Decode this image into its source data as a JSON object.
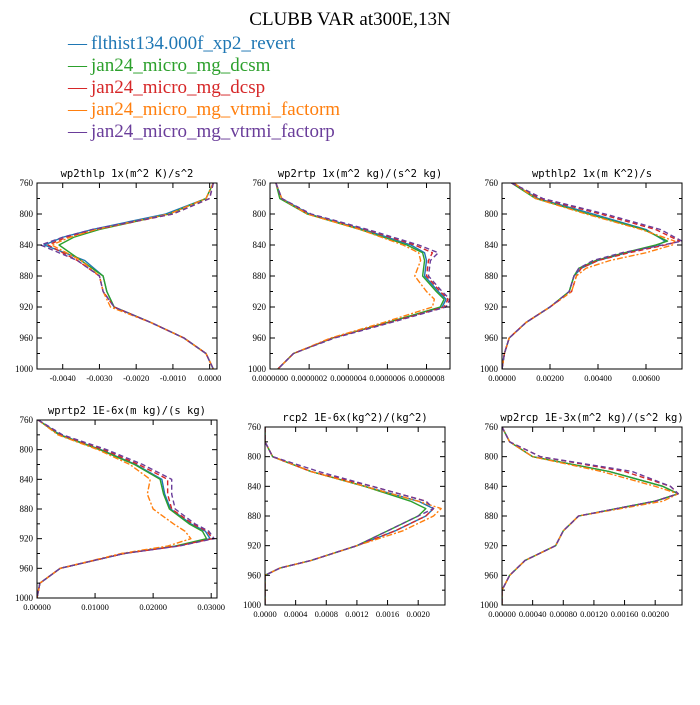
{
  "title": "CLUBB VAR at300E,13N",
  "legend": [
    {
      "name": "flthist134.000f_xp2_revert",
      "color": "#1f77b4",
      "dash": "solid"
    },
    {
      "name": "jan24_micro_mg_dcsm",
      "color": "#2ca02c",
      "dash": "solid"
    },
    {
      "name": "jan24_micro_mg_dcsp",
      "color": "#d62728",
      "dash": "dashed"
    },
    {
      "name": "jan24_micro_mg_vtrmi_factorm",
      "color": "#ff7f0e",
      "dash": "dashdot"
    },
    {
      "name": "jan24_micro_mg_vtrmi_factorp",
      "color": "#6a3d9a",
      "dash": "dashed"
    }
  ],
  "legend_marker": "—",
  "chart_data": [
    {
      "type": "line",
      "title": "wp2thlp  1x(m^2 K)/s^2",
      "xlim": [
        -0.0047,
        0.0002
      ],
      "ylim": [
        760,
        1000
      ],
      "xticks": [
        -0.004,
        -0.003,
        -0.002,
        -0.001,
        0.0
      ],
      "xtick_labels": [
        "-0.0040",
        "-0.0030",
        "-0.0020",
        "-0.0010",
        "0.0000"
      ],
      "yticks": [
        760,
        800,
        840,
        880,
        920,
        960,
        1000
      ],
      "y": [
        760,
        780,
        800,
        820,
        830,
        840,
        860,
        880,
        900,
        920,
        940,
        960,
        980,
        1000
      ],
      "series": [
        {
          "values": [
            0.0001,
            -0.0001,
            -0.0012,
            -0.0032,
            -0.004,
            -0.0045,
            -0.0034,
            -0.0029,
            -0.0028,
            -0.0026,
            -0.0016,
            -0.0007,
            -0.0001,
            0.0001
          ]
        },
        {
          "values": [
            0.0001,
            -0.0001,
            -0.0011,
            -0.003,
            -0.0037,
            -0.0041,
            -0.0035,
            -0.0029,
            -0.0028,
            -0.0026,
            -0.0016,
            -0.0007,
            -0.0001,
            0.0001
          ]
        },
        {
          "values": [
            0.0001,
            0.0,
            -0.001,
            -0.0031,
            -0.0039,
            -0.0044,
            -0.0036,
            -0.003,
            -0.0029,
            -0.0026,
            -0.0016,
            -0.0007,
            -0.0001,
            0.0001
          ]
        },
        {
          "values": [
            0.0001,
            -0.0001,
            -0.0011,
            -0.0031,
            -0.0038,
            -0.0043,
            -0.0035,
            -0.003,
            -0.0029,
            -0.0027,
            -0.0016,
            -0.0007,
            -0.0001,
            0.0001
          ]
        },
        {
          "values": [
            0.0001,
            0.0,
            -0.001,
            -0.0032,
            -0.004,
            -0.0046,
            -0.0036,
            -0.003,
            -0.0029,
            -0.0026,
            -0.0016,
            -0.0007,
            -0.0001,
            0.0001
          ]
        }
      ]
    },
    {
      "type": "line",
      "title": "wp2rtp  1x(m^2 kg)/(s^2 kg)",
      "xlim": [
        0.0,
        9.2e-07
      ],
      "ylim": [
        760,
        1000
      ],
      "xticks": [
        0.0,
        2e-07,
        4e-07,
        6e-07,
        8e-07
      ],
      "xtick_labels": [
        "0.0000000",
        "0.0000002",
        "0.0000004",
        "0.0000006",
        "0.0000008"
      ],
      "yticks": [
        760,
        800,
        840,
        880,
        920,
        960,
        1000
      ],
      "y": [
        760,
        780,
        800,
        820,
        840,
        850,
        860,
        880,
        900,
        910,
        920,
        940,
        960,
        980,
        1000
      ],
      "series": [
        {
          "values": [
            3e-08,
            6e-08,
            2e-07,
            4.8e-07,
            7.2e-07,
            7.9e-07,
            8e-07,
            7.9e-07,
            8.6e-07,
            9e-07,
            8.8e-07,
            6e-07,
            3.2e-07,
            1.2e-07,
            4e-08
          ]
        },
        {
          "values": [
            3e-08,
            5e-08,
            1.9e-07,
            4.6e-07,
            7e-07,
            7.8e-07,
            7.9e-07,
            7.8e-07,
            8.5e-07,
            8.9e-07,
            8.7e-07,
            6e-07,
            3.2e-07,
            1.2e-07,
            4e-08
          ]
        },
        {
          "values": [
            3e-08,
            6e-08,
            2e-07,
            4.9e-07,
            7.4e-07,
            8.3e-07,
            8.1e-07,
            8e-07,
            8.7e-07,
            9.1e-07,
            8.9e-07,
            6.1e-07,
            3.2e-07,
            1.2e-07,
            4e-08
          ]
        },
        {
          "values": [
            3e-08,
            6e-08,
            1.9e-07,
            4.6e-07,
            6.8e-07,
            7.6e-07,
            7.7e-07,
            7.4e-07,
            8e-07,
            8.4e-07,
            8.3e-07,
            5.8e-07,
            3.1e-07,
            1.2e-07,
            4e-08
          ]
        },
        {
          "values": [
            3e-08,
            6e-08,
            2.1e-07,
            5e-07,
            7.6e-07,
            8.6e-07,
            8.2e-07,
            8.1e-07,
            8.8e-07,
            9.2e-07,
            9e-07,
            6.2e-07,
            3.3e-07,
            1.2e-07,
            4e-08
          ]
        }
      ]
    },
    {
      "type": "line",
      "title": "wpthlp2  1x(m K^2)/s",
      "xlim": [
        0.0,
        0.0075
      ],
      "ylim": [
        760,
        1000
      ],
      "xticks": [
        0.0,
        0.002,
        0.004,
        0.006
      ],
      "xtick_labels": [
        "0.00000",
        "0.00200",
        "0.00400",
        "0.00600"
      ],
      "yticks": [
        760,
        800,
        840,
        880,
        920,
        960,
        1000
      ],
      "y": [
        760,
        780,
        800,
        820,
        835,
        840,
        850,
        860,
        870,
        880,
        900,
        920,
        940,
        960,
        980,
        1000
      ],
      "series": [
        {
          "values": [
            0.0004,
            0.0015,
            0.0038,
            0.006,
            0.0068,
            0.0065,
            0.0052,
            0.004,
            0.0033,
            0.003,
            0.0028,
            0.002,
            0.001,
            0.0003,
            0.0001,
            0.0
          ]
        },
        {
          "values": [
            0.0004,
            0.0014,
            0.0036,
            0.0059,
            0.0069,
            0.0064,
            0.0051,
            0.0039,
            0.0032,
            0.003,
            0.0028,
            0.002,
            0.001,
            0.0003,
            0.0001,
            0.0
          ]
        },
        {
          "values": [
            0.0004,
            0.0016,
            0.0041,
            0.0064,
            0.0074,
            0.0068,
            0.0053,
            0.004,
            0.0033,
            0.0031,
            0.0029,
            0.002,
            0.001,
            0.0003,
            0.0001,
            0.0
          ]
        },
        {
          "values": [
            0.0005,
            0.0014,
            0.0035,
            0.0058,
            0.0072,
            0.0071,
            0.006,
            0.0045,
            0.0035,
            0.0031,
            0.0029,
            0.002,
            0.001,
            0.0003,
            0.0001,
            0.0
          ]
        },
        {
          "values": [
            0.0004,
            0.0017,
            0.0043,
            0.0066,
            0.0075,
            0.0067,
            0.005,
            0.0038,
            0.0032,
            0.003,
            0.0028,
            0.002,
            0.001,
            0.0003,
            0.0001,
            0.0
          ]
        }
      ]
    },
    {
      "type": "line",
      "title": "wprtp2  1E-6x(m kg)/(s kg)",
      "xlim": [
        0.0,
        0.031
      ],
      "ylim": [
        760,
        1000
      ],
      "xticks": [
        0.0,
        0.01,
        0.02,
        0.03
      ],
      "xtick_labels": [
        "0.00000",
        "0.01000",
        "0.02000",
        "0.03000"
      ],
      "yticks": [
        760,
        800,
        840,
        880,
        920,
        960,
        1000
      ],
      "y": [
        760,
        780,
        800,
        820,
        840,
        860,
        880,
        900,
        910,
        920,
        930,
        940,
        960,
        980,
        1000
      ],
      "series": [
        {
          "values": [
            0.0002,
            0.004,
            0.011,
            0.017,
            0.0215,
            0.022,
            0.023,
            0.0265,
            0.029,
            0.0298,
            0.024,
            0.015,
            0.004,
            0.0005,
            0.0
          ]
        },
        {
          "values": [
            0.0002,
            0.0038,
            0.0108,
            0.0168,
            0.0212,
            0.0218,
            0.0228,
            0.0262,
            0.0285,
            0.0292,
            0.0238,
            0.015,
            0.004,
            0.0005,
            0.0
          ]
        },
        {
          "values": [
            0.0002,
            0.0042,
            0.0115,
            0.0175,
            0.0225,
            0.0225,
            0.0232,
            0.0268,
            0.0293,
            0.0302,
            0.0242,
            0.015,
            0.004,
            0.0005,
            0.0
          ]
        },
        {
          "values": [
            0.0002,
            0.0036,
            0.0105,
            0.016,
            0.0195,
            0.019,
            0.02,
            0.0235,
            0.0255,
            0.0265,
            0.0225,
            0.0145,
            0.004,
            0.0005,
            0.0
          ]
        },
        {
          "values": [
            0.0002,
            0.0044,
            0.012,
            0.0182,
            0.0232,
            0.0232,
            0.0238,
            0.0272,
            0.0296,
            0.0305,
            0.0244,
            0.015,
            0.004,
            0.0005,
            0.0
          ]
        }
      ]
    },
    {
      "type": "line",
      "title": "rcp2  1E-6x(kg^2)/(kg^2)",
      "xlim": [
        0.0,
        0.00235
      ],
      "ylim": [
        760,
        1000
      ],
      "xticks": [
        0.0,
        0.0004,
        0.0008,
        0.0012,
        0.0016,
        0.002
      ],
      "xtick_labels": [
        "0.0000",
        "0.0004",
        "0.0008",
        "0.0012",
        "0.0016",
        "0.0020"
      ],
      "yticks": [
        760,
        800,
        840,
        880,
        920,
        960,
        1000
      ],
      "y": [
        760,
        780,
        800,
        820,
        840,
        860,
        870,
        880,
        900,
        920,
        940,
        950,
        960,
        980,
        1000
      ],
      "series": [
        {
          "values": [
            0.0,
            0.0,
            0.0001,
            0.0006,
            0.0013,
            0.002,
            0.0022,
            0.0021,
            0.0017,
            0.0012,
            0.0006,
            0.0002,
            0.0,
            0.0,
            0.0
          ]
        },
        {
          "values": [
            0.0,
            0.0,
            0.0001,
            0.0006,
            0.0013,
            0.0019,
            0.0021,
            0.002,
            0.0016,
            0.0012,
            0.0006,
            0.0002,
            0.0,
            0.0,
            0.0
          ]
        },
        {
          "values": [
            0.0,
            0.0,
            0.0001,
            0.0006,
            0.0014,
            0.0021,
            0.0022,
            0.0021,
            0.0017,
            0.0012,
            0.0006,
            0.0002,
            0.0,
            0.0,
            0.0
          ]
        },
        {
          "values": [
            0.0,
            0.0,
            0.0001,
            0.0006,
            0.0013,
            0.002,
            0.0023,
            0.0022,
            0.0018,
            0.0012,
            0.0006,
            0.0002,
            0.0,
            0.0,
            0.0
          ]
        },
        {
          "values": [
            0.0,
            0.0,
            0.0001,
            0.0007,
            0.0014,
            0.0021,
            0.0022,
            0.002,
            0.0016,
            0.0012,
            0.0006,
            0.0002,
            0.0,
            0.0,
            0.0
          ]
        }
      ]
    },
    {
      "type": "line",
      "title": "wp2rcp  1E-3x(m^2 kg)/(s^2 kg)",
      "xlim": [
        0.0,
        0.00235
      ],
      "ylim": [
        760,
        1000
      ],
      "xticks": [
        0.0,
        0.0004,
        0.0008,
        0.0012,
        0.0016,
        0.002
      ],
      "xtick_labels": [
        "0.00000",
        "0.00040",
        "0.00080",
        "0.00120",
        "0.00160",
        "0.00200"
      ],
      "yticks": [
        760,
        800,
        840,
        880,
        920,
        960,
        1000
      ],
      "y": [
        760,
        780,
        800,
        820,
        840,
        850,
        860,
        880,
        900,
        920,
        940,
        960,
        980,
        1000
      ],
      "series": [
        {
          "values": [
            0.0,
            0.0001,
            0.0004,
            0.0014,
            0.0021,
            0.0023,
            0.002,
            0.001,
            0.0008,
            0.0007,
            0.0003,
            0.0001,
            0.0,
            0.0
          ]
        },
        {
          "values": [
            0.0,
            0.0001,
            0.0004,
            0.0014,
            0.0021,
            0.0023,
            0.002,
            0.001,
            0.0008,
            0.0007,
            0.0003,
            0.0001,
            0.0,
            0.0
          ]
        },
        {
          "values": [
            0.0,
            0.0001,
            0.0005,
            0.0016,
            0.0022,
            0.0023,
            0.002,
            0.001,
            0.0008,
            0.0007,
            0.0003,
            0.0001,
            0.0,
            0.0
          ]
        },
        {
          "values": [
            0.0,
            0.0001,
            0.0004,
            0.0013,
            0.002,
            0.0023,
            0.0021,
            0.001,
            0.0008,
            0.0007,
            0.0003,
            0.0001,
            0.0,
            0.0
          ]
        },
        {
          "values": [
            0.0,
            0.0001,
            0.0005,
            0.0017,
            0.0022,
            0.0023,
            0.002,
            0.001,
            0.0008,
            0.0007,
            0.0003,
            0.0001,
            0.0,
            0.0
          ]
        }
      ]
    }
  ]
}
